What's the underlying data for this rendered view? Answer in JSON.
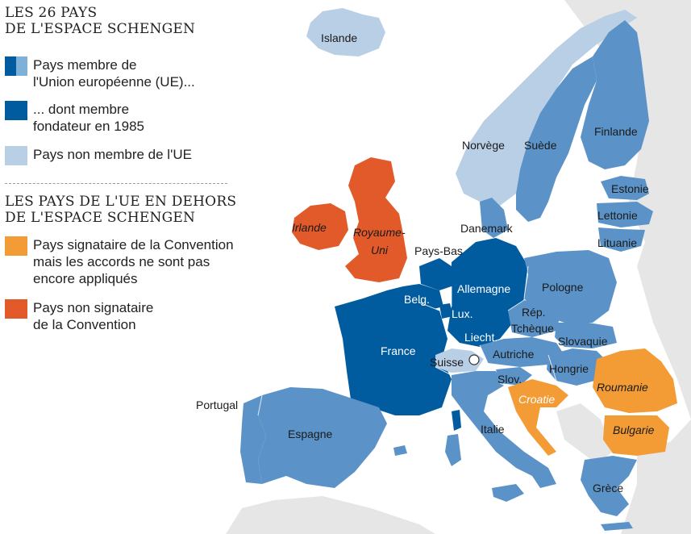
{
  "legend": {
    "title_schengen_1": "LES 26 PAYS",
    "title_schengen_2": "DE L'ESPACE SCHENGEN",
    "item_member_eu_1": "Pays membre de",
    "item_member_eu_2": "l'Union européenne (UE)...",
    "item_founder_1": "... dont membre",
    "item_founder_2": "fondateur en 1985",
    "item_non_eu": "Pays non membre de l'UE",
    "title_outside_1": "LES PAYS DE L'UE EN DEHORS",
    "title_outside_2": "DE L'ESPACE SCHENGEN",
    "item_signatory_1": "Pays signataire de la Convention",
    "item_signatory_2": "mais les accords ne sont pas",
    "item_signatory_3": "encore appliqués",
    "item_nonsignatory_1": "Pays non signataire",
    "item_nonsignatory_2": "de la Convention"
  },
  "colors": {
    "founder": "#005b9f",
    "member_eu": "#5b93c8",
    "member_eu_light": "#7fb0d8",
    "non_eu": "#b9cfe6",
    "signatory": "#f39b34",
    "non_signatory": "#e35a2a",
    "background_land": "#e6e6e6",
    "sea": "#ffffff"
  },
  "countries": {
    "islande": "Islande",
    "norvege": "Norvège",
    "suede": "Suède",
    "finlande": "Finlande",
    "estonie": "Estonie",
    "lettonie": "Lettonie",
    "lituanie": "Lituanie",
    "danemark": "Danemark",
    "irlande": "Irlande",
    "royaume_uni_1": "Royaume-",
    "royaume_uni_2": "Uni",
    "pays_bas": "Pays-Bas",
    "belgique": "Belg.",
    "luxembourg": "Lux.",
    "allemagne": "Allemagne",
    "pologne": "Pologne",
    "rep_tcheque_1": "Rép.",
    "rep_tcheque_2": "Tchèque",
    "liechtenstein": "Liecht.",
    "slovaquie": "Slovaquie",
    "france": "France",
    "suisse": "Suisse",
    "autriche": "Autriche",
    "hongrie": "Hongrie",
    "roumanie": "Roumanie",
    "slovenie": "Slov.",
    "croatie": "Croatie",
    "bulgarie": "Bulgarie",
    "portugal": "Portugal",
    "espagne": "Espagne",
    "italie": "Italie",
    "grece": "Grèce"
  }
}
